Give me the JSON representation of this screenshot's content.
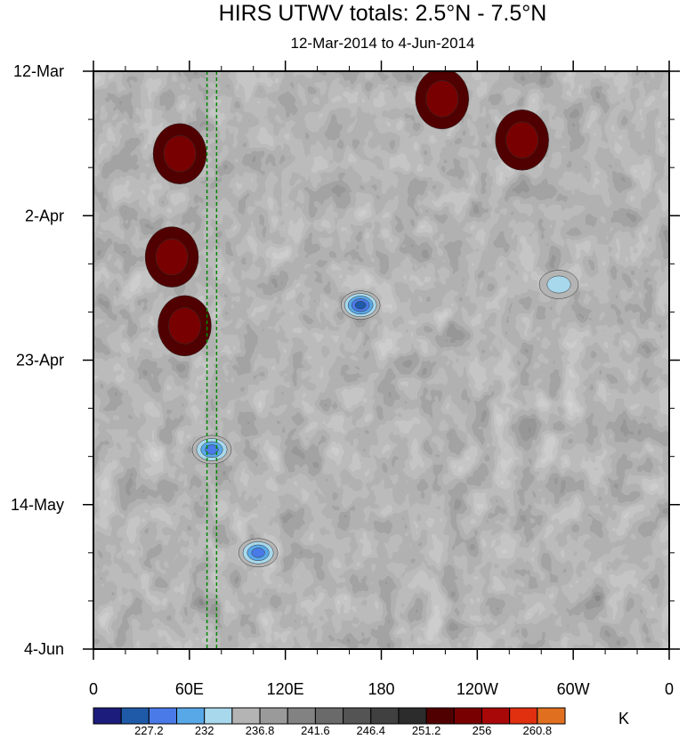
{
  "chart_data": {
    "type": "heatmap",
    "title": "HIRS UTWV totals: 2.5°N - 7.5°N",
    "subtitle": "12-Mar-2014 to 4-Jun-2014",
    "x_ticks": [
      "0",
      "60E",
      "120E",
      "180",
      "120W",
      "60W",
      "0"
    ],
    "x_tick_values": [
      0,
      60,
      120,
      180,
      240,
      300,
      360
    ],
    "xlim": [
      0,
      360
    ],
    "y_ticks": [
      "12-Mar",
      "2-Apr",
      "23-Apr",
      "14-May",
      "4-Jun"
    ],
    "y_tick_values": [
      "2014-03-12",
      "2014-04-02",
      "2014-04-23",
      "2014-05-14",
      "2014-06-04"
    ],
    "ylim": [
      "2014-03-12",
      "2014-06-04"
    ],
    "y_reversed": true,
    "colorbar": {
      "unit": "K",
      "labels": [
        "227.2",
        "232",
        "236.8",
        "241.6",
        "246.4",
        "251.2",
        "256",
        "260.8"
      ],
      "colors": [
        "#1c1c7c",
        "#1f5aa8",
        "#4a7ae8",
        "#58a8e8",
        "#a8d8ec",
        "#b4b4b4",
        "#9a9a9a",
        "#828282",
        "#6a6a6a",
        "#545454",
        "#404040",
        "#2c2c2c",
        "#500000",
        "#780000",
        "#a80808",
        "#e03010",
        "#e07020"
      ]
    },
    "reference_lines": [
      {
        "style": "dashed",
        "color": "#008800",
        "x": 71
      },
      {
        "style": "dashed",
        "color": "#008800",
        "x": 77
      }
    ],
    "features": [
      {
        "type": "warm-maximum",
        "x": 57,
        "y": "2014-04-18",
        "value": 258
      },
      {
        "type": "warm-maximum",
        "x": 49,
        "y": "2014-04-08",
        "value": 257
      },
      {
        "type": "warm-maximum",
        "x": 54,
        "y": "2014-03-24",
        "value": 257
      },
      {
        "type": "warm-maximum",
        "x": 218,
        "y": "2014-03-16",
        "value": 258
      },
      {
        "type": "warm-maximum",
        "x": 268,
        "y": "2014-03-22",
        "value": 256
      },
      {
        "type": "cold-minimum",
        "x": 167,
        "y": "2014-04-15",
        "value": 229
      },
      {
        "type": "cold-minimum",
        "x": 103,
        "y": "2014-05-21",
        "value": 231
      },
      {
        "type": "cold-minimum",
        "x": 74,
        "y": "2014-05-06",
        "value": 231
      },
      {
        "type": "cold-minimum",
        "x": 291,
        "y": "2014-04-12",
        "value": 234
      }
    ]
  }
}
